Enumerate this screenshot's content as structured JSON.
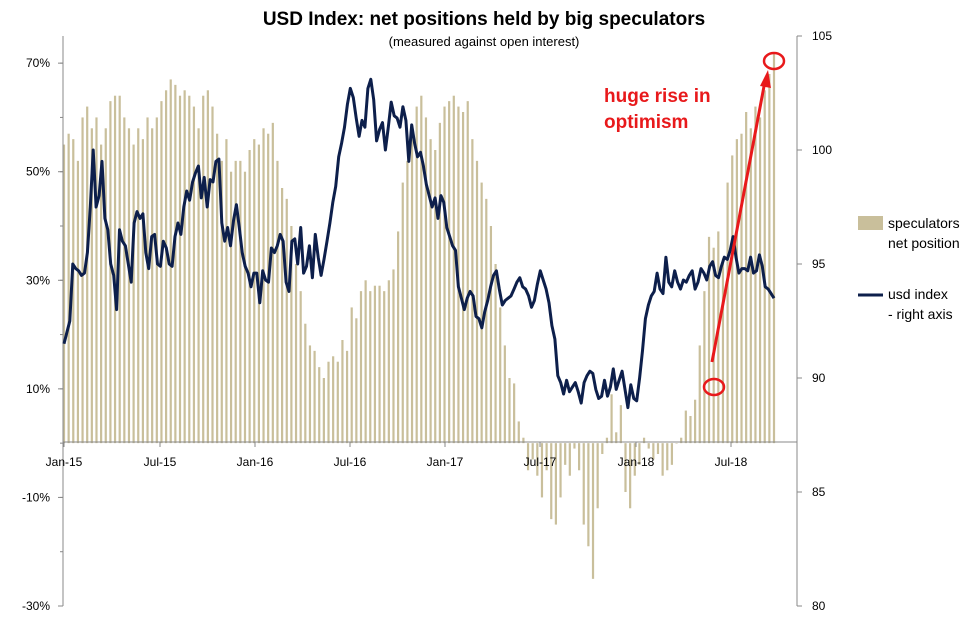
{
  "chart_data": {
    "type": "bar+line",
    "title": "USD Index: net positions held by big speculators",
    "subtitle": "(measured against open interest)",
    "x_tick_labels": [
      "Jan-15",
      "Jul-15",
      "Jan-16",
      "Jul-16",
      "Jan-17",
      "Jul-17",
      "Jan-18",
      "Jul-18"
    ],
    "left_axis": {
      "ylim": [
        -0.3,
        0.75
      ],
      "tick_labels": [
        "70%",
        "50%",
        "30%",
        "10%",
        "-10%",
        "-30%"
      ],
      "tick_values": [
        0.7,
        0.5,
        0.3,
        0.1,
        -0.1,
        -0.3
      ]
    },
    "right_axis": {
      "ylim": [
        80,
        105
      ],
      "tick_labels": [
        "105",
        "100",
        "95",
        "90",
        "85",
        "80"
      ],
      "tick_values": [
        105,
        100,
        95,
        90,
        85,
        80
      ]
    },
    "series": [
      {
        "name": "speculators net position",
        "axis": "left",
        "kind": "bar",
        "color": "#c9bf9b",
        "values": [
          0.55,
          0.57,
          0.56,
          0.52,
          0.6,
          0.62,
          0.58,
          0.6,
          0.55,
          0.58,
          0.63,
          0.64,
          0.64,
          0.6,
          0.58,
          0.55,
          0.58,
          0.56,
          0.6,
          0.58,
          0.6,
          0.63,
          0.65,
          0.67,
          0.66,
          0.64,
          0.65,
          0.64,
          0.62,
          0.58,
          0.64,
          0.65,
          0.62,
          0.57,
          0.52,
          0.56,
          0.5,
          0.52,
          0.52,
          0.5,
          0.54,
          0.56,
          0.55,
          0.58,
          0.57,
          0.59,
          0.52,
          0.47,
          0.45,
          0.4,
          0.33,
          0.28,
          0.22,
          0.18,
          0.17,
          0.14,
          0.12,
          0.15,
          0.16,
          0.15,
          0.19,
          0.17,
          0.25,
          0.23,
          0.28,
          0.3,
          0.28,
          0.29,
          0.29,
          0.28,
          0.3,
          0.32,
          0.39,
          0.48,
          0.52,
          0.58,
          0.62,
          0.64,
          0.6,
          0.56,
          0.54,
          0.59,
          0.62,
          0.63,
          0.64,
          0.62,
          0.61,
          0.63,
          0.56,
          0.52,
          0.48,
          0.45,
          0.4,
          0.33,
          0.25,
          0.18,
          0.12,
          0.11,
          0.04,
          0.01,
          -0.05,
          -0.03,
          -0.06,
          -0.1,
          -0.05,
          -0.14,
          -0.15,
          -0.1,
          -0.04,
          -0.06,
          -0.01,
          -0.05,
          -0.15,
          -0.19,
          -0.25,
          -0.12,
          -0.02,
          0.01,
          0.09,
          0.02,
          0.07,
          -0.09,
          -0.12,
          -0.06,
          -0.04,
          0.01,
          -0.01,
          -0.03,
          -0.02,
          -0.06,
          -0.05,
          -0.04,
          0.0,
          0.01,
          0.06,
          0.05,
          0.08,
          0.18,
          0.28,
          0.38,
          0.36,
          0.39,
          0.34,
          0.48,
          0.53,
          0.56,
          0.57,
          0.61,
          0.58,
          0.62,
          0.6,
          0.65,
          0.68,
          0.72
        ]
      },
      {
        "name": "usd index - right axis",
        "axis": "right",
        "kind": "line",
        "color": "#0d1f4b",
        "values": [
          91.5,
          92.0,
          92.5,
          95.0,
          94.8,
          94.7,
          94.5,
          94.6,
          95.5,
          97.5,
          100.0,
          97.5,
          98.0,
          99.5,
          97.0,
          96.5,
          95.0,
          94.5,
          93.0,
          96.5,
          96.0,
          95.8,
          95.0,
          94.2,
          96.8,
          97.3,
          97.0,
          97.2,
          95.5,
          94.8,
          96.2,
          96.3,
          95.0,
          94.9,
          96.0,
          95.7,
          95.0,
          94.9,
          96.2,
          96.8,
          96.3,
          97.5,
          98.2,
          97.8,
          98.6,
          99.0,
          99.3,
          97.9,
          98.8,
          97.5,
          98.7,
          98.6,
          99.5,
          99.6,
          96.8,
          96.0,
          96.6,
          95.8,
          96.9,
          97.6,
          96.6,
          95.5,
          94.9,
          94.6,
          94.0,
          94.6,
          94.6,
          93.3,
          94.7,
          94.3,
          94.2,
          95.7,
          95.5,
          95.8,
          96.3,
          96.0,
          94.2,
          93.8,
          96.0,
          96.1,
          95.0,
          96.6,
          94.6,
          94.9,
          95.8,
          94.4,
          96.3,
          95.3,
          94.5,
          95.2,
          96.0,
          96.8,
          97.7,
          98.4,
          99.7,
          100.3,
          101.0,
          102.0,
          102.7,
          102.3,
          101.4,
          100.6,
          101.3,
          101.0,
          102.7,
          103.1,
          102.2,
          100.4,
          100.9,
          101.2,
          100.0,
          101.0,
          102.1,
          101.5,
          101.4,
          101.0,
          101.9,
          101.3,
          99.5,
          101.1,
          100.3,
          99.7,
          99.9,
          99.3,
          98.5,
          98.0,
          97.5,
          97.9,
          97.0,
          98.0,
          97.7,
          96.6,
          96.2,
          95.8,
          95.6,
          94.0,
          93.5,
          93.0,
          93.5,
          93.8,
          93.6,
          92.7,
          92.6,
          92.2,
          92.9,
          93.4,
          94.0,
          94.5,
          94.7,
          93.9,
          93.2,
          93.4,
          93.5,
          93.6,
          93.9,
          94.2,
          94.4,
          94.0,
          93.9,
          93.6,
          93.1,
          93.4,
          94.1,
          94.7,
          94.3,
          93.9,
          93.3,
          92.3,
          91.7,
          90.1,
          89.8,
          89.3,
          89.9,
          89.4,
          89.6,
          89.8,
          89.4,
          88.9,
          89.8,
          90.1,
          90.3,
          90.2,
          89.5,
          89.1,
          89.2,
          89.9,
          89.2,
          89.6,
          90.4,
          89.5,
          89.9,
          90.3,
          89.5,
          88.7,
          89.7,
          89.1,
          89.0,
          90.0,
          91.2,
          92.6,
          93.2,
          93.6,
          93.8,
          94.6,
          93.9,
          93.7,
          95.3,
          94.2,
          94.0,
          94.7,
          94.2,
          93.9,
          94.3,
          94.2,
          94.5,
          94.7,
          93.9,
          94.2,
          94.8,
          94.6,
          94.3,
          94.9,
          95.1,
          94.5,
          94.4,
          94.9,
          95.3,
          95.2,
          95.6,
          96.2,
          95.3,
          94.6,
          94.8,
          94.8,
          94.7,
          95.3,
          94.6,
          94.7,
          95.4,
          94.9,
          94.0,
          93.9,
          93.7,
          93.5
        ]
      }
    ],
    "legend": {
      "placement": "right",
      "bar_label_lines": [
        "speculators",
        "net position"
      ],
      "line_label_lines": [
        "usd index",
        "- right axis"
      ]
    },
    "annotation": {
      "text_lines": [
        "huge rise in",
        "optimism"
      ],
      "color": "#e8191b"
    },
    "grid": false
  }
}
